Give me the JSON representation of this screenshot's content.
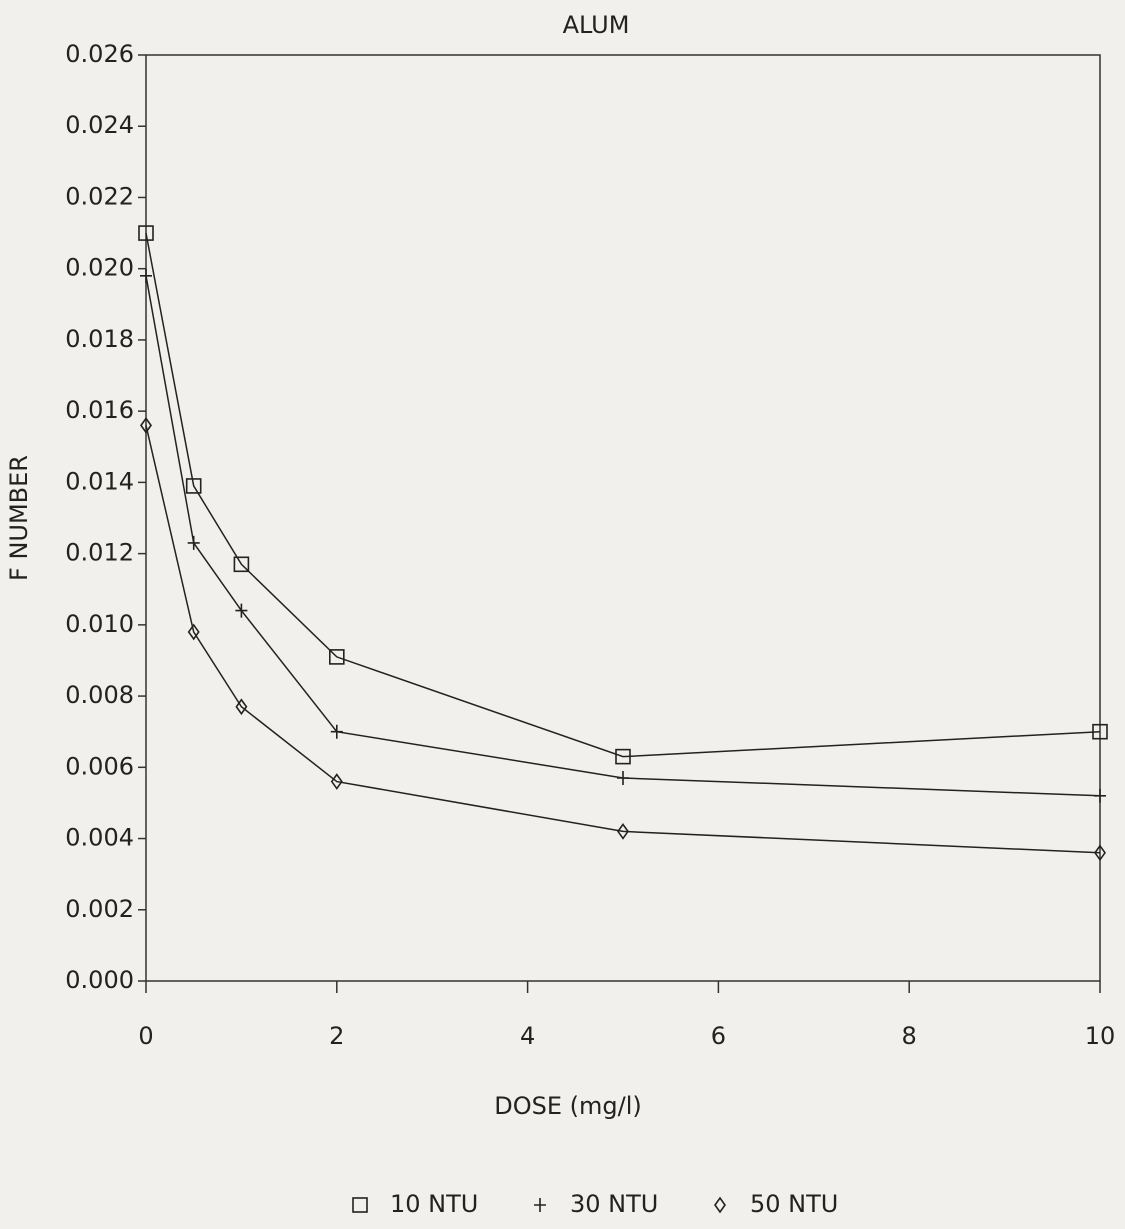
{
  "chart_data": {
    "type": "line",
    "title": "ALUM",
    "x_label": "DOSE (mg/l)",
    "y_label": "F NUMBER",
    "x": [
      0,
      0.5,
      1,
      2,
      5,
      10
    ],
    "series": [
      {
        "name": "10 NTU",
        "marker": "square",
        "color": "#222222",
        "values": [
          0.021,
          0.0139,
          0.0117,
          0.0091,
          0.0063,
          0.007
        ]
      },
      {
        "name": "30 NTU",
        "marker": "plus",
        "color": "#222222",
        "values": [
          0.0198,
          0.0123,
          0.0104,
          0.007,
          0.0057,
          0.0052
        ]
      },
      {
        "name": "50 NTU",
        "marker": "diamond",
        "color": "#222222",
        "values": [
          0.0156,
          0.0098,
          0.0077,
          0.0056,
          0.0042,
          0.0036
        ]
      }
    ],
    "xlim": [
      0,
      10
    ],
    "xticks": [
      0,
      2,
      4,
      6,
      8,
      10
    ],
    "ylim": [
      0,
      0.026
    ],
    "yticks": [
      {
        "value": 0,
        "label": "0.000"
      },
      0.002,
      0.004,
      0.006,
      0.008,
      {
        "value": 0.01,
        "label": "0.010"
      },
      0.012,
      0.014,
      0.016,
      0.018,
      {
        "value": 0.02,
        "label": "0.020"
      },
      0.022,
      0.024,
      0.026
    ],
    "grid": false,
    "legend": "bottom"
  }
}
